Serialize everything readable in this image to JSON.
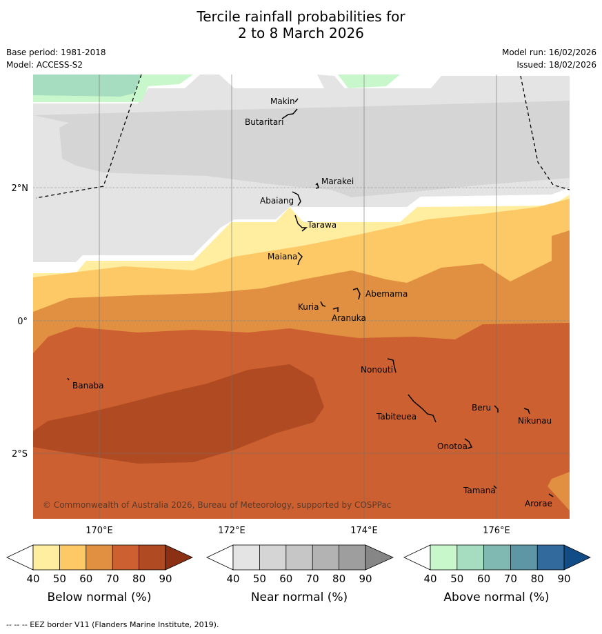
{
  "title": {
    "line1": "Tercile rainfall probabilities for",
    "line2": "2 to 8 March 2026"
  },
  "meta": {
    "base_period": "Base period: 1981-2018",
    "model": "Model: ACCESS-S2",
    "model_run": "Model run: 16/02/2026",
    "issued": "Issued: 18/02/2026"
  },
  "map": {
    "lon_labels": [
      "170°E",
      "172°E",
      "174°E",
      "176°E"
    ],
    "lat_labels": [
      "2°N",
      "0°",
      "2°S"
    ],
    "copyright": "© Commonwealth of Australia 2026, Bureau of Meteorology, supported by COSPPac",
    "islands": [
      {
        "name": "Makin"
      },
      {
        "name": "Butaritari"
      },
      {
        "name": "Marakei"
      },
      {
        "name": "Abaiang"
      },
      {
        "name": "Tarawa"
      },
      {
        "name": "Maiana"
      },
      {
        "name": "Abemama"
      },
      {
        "name": "Kuria"
      },
      {
        "name": "Aranuka"
      },
      {
        "name": "Nonouti"
      },
      {
        "name": "Banaba"
      },
      {
        "name": "Beru"
      },
      {
        "name": "Tabiteuea"
      },
      {
        "name": "Nikunau"
      },
      {
        "name": "Onotoa"
      },
      {
        "name": "Tamana"
      },
      {
        "name": "Arorae"
      }
    ]
  },
  "colorbars": [
    {
      "label": "Below normal (%)",
      "ticks": [
        "40",
        "50",
        "60",
        "70",
        "80",
        "90"
      ],
      "colors": [
        "#ffeda0",
        "#fdc966",
        "#e09040",
        "#cc6030",
        "#b04a22",
        "#8c3014"
      ]
    },
    {
      "label": "Near normal (%)",
      "ticks": [
        "40",
        "50",
        "60",
        "70",
        "80",
        "90"
      ],
      "colors": [
        "#e4e4e4",
        "#d5d5d5",
        "#c6c6c6",
        "#b3b3b3",
        "#9e9e9e",
        "#868686"
      ]
    },
    {
      "label": "Above normal (%)",
      "ticks": [
        "40",
        "50",
        "60",
        "70",
        "80",
        "90"
      ],
      "colors": [
        "#c8f7cc",
        "#a6dcbf",
        "#80b9b1",
        "#5e96a5",
        "#336a9e",
        "#114c86"
      ]
    }
  ],
  "footer": "--  --  -- EEZ border V11 (Flanders Marine Institute, 2019)."
}
